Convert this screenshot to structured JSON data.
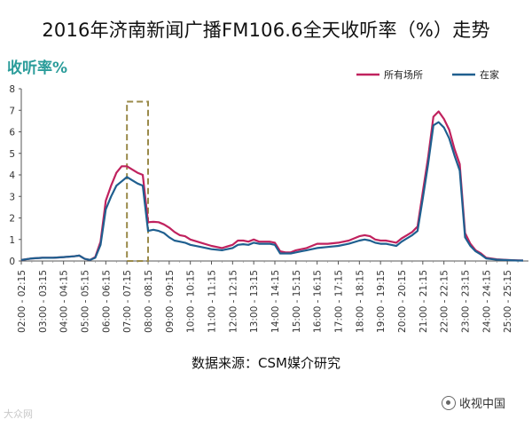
{
  "header": {
    "title": "2016年济南新闻广播FM106.6全天收听率（%）走势"
  },
  "footer": {
    "source": "数据来源：CSM媒介研究",
    "watermark_left": "大众网",
    "watermark_right": "收视中国",
    "watermark_right_icon": "speech-bubble-icon"
  },
  "colors": {
    "series_all": "#c0225e",
    "series_home": "#1f5f8f",
    "highlight_box": "#9a8a4a",
    "ylabel": "#2a9c9a"
  },
  "chart_data": {
    "type": "line",
    "title": "2016年济南新闻广播FM106.6全天收听率（%）走势",
    "xlabel": "",
    "ylabel": "收听率%",
    "ylim": [
      0,
      8
    ],
    "yticks": [
      0,
      1,
      2,
      3,
      4,
      5,
      6,
      7,
      8
    ],
    "legend_position": "top-right",
    "grid": false,
    "x_tick_labels": [
      "02:00 - 02:15",
      "03:00 - 03:15",
      "04:00 - 04:15",
      "05:00 - 05:15",
      "06:00 - 06:15",
      "07:00 - 07:15",
      "08:00 - 08:15",
      "09:00 - 09:15",
      "10:00 - 10:15",
      "11:00 - 11:15",
      "12:00 - 12:15",
      "13:00 - 13:15",
      "14:00 - 14:15",
      "15:00 - 15:15",
      "16:00 - 16:15",
      "17:00 - 17:15",
      "18:00 - 18:15",
      "19:00 - 19:15",
      "20:00 - 20:15",
      "21:00 - 21:15",
      "22:00 - 22:15",
      "23:00 - 23:15",
      "24:00 - 24:15",
      "25:00 - 25:15"
    ],
    "highlight": {
      "x_range": [
        "07:00 - 07:15",
        "08:00 - 08:15"
      ],
      "y_top": 7.4
    },
    "series": [
      {
        "name": "所有场所",
        "color": "#c0225e",
        "points": [
          [
            2.0,
            0.05
          ],
          [
            2.5,
            0.12
          ],
          [
            3.0,
            0.15
          ],
          [
            3.5,
            0.15
          ],
          [
            4.0,
            0.18
          ],
          [
            4.5,
            0.22
          ],
          [
            4.75,
            0.25
          ],
          [
            5.0,
            0.1
          ],
          [
            5.25,
            0.05
          ],
          [
            5.5,
            0.18
          ],
          [
            5.75,
            0.9
          ],
          [
            6.0,
            2.8
          ],
          [
            6.25,
            3.5
          ],
          [
            6.5,
            4.1
          ],
          [
            6.75,
            4.4
          ],
          [
            7.0,
            4.4
          ],
          [
            7.25,
            4.25
          ],
          [
            7.5,
            4.1
          ],
          [
            7.75,
            4.0
          ],
          [
            8.0,
            1.8
          ],
          [
            8.25,
            1.82
          ],
          [
            8.5,
            1.8
          ],
          [
            8.75,
            1.7
          ],
          [
            9.0,
            1.55
          ],
          [
            9.25,
            1.35
          ],
          [
            9.5,
            1.2
          ],
          [
            9.75,
            1.15
          ],
          [
            10.0,
            1.0
          ],
          [
            10.5,
            0.85
          ],
          [
            11.0,
            0.7
          ],
          [
            11.5,
            0.6
          ],
          [
            12.0,
            0.75
          ],
          [
            12.25,
            0.95
          ],
          [
            12.5,
            0.95
          ],
          [
            12.75,
            0.9
          ],
          [
            13.0,
            1.0
          ],
          [
            13.25,
            0.9
          ],
          [
            13.5,
            0.9
          ],
          [
            13.75,
            0.9
          ],
          [
            14.0,
            0.85
          ],
          [
            14.25,
            0.45
          ],
          [
            14.5,
            0.4
          ],
          [
            14.75,
            0.4
          ],
          [
            15.0,
            0.5
          ],
          [
            15.25,
            0.55
          ],
          [
            15.5,
            0.6
          ],
          [
            15.75,
            0.7
          ],
          [
            16.0,
            0.8
          ],
          [
            16.5,
            0.8
          ],
          [
            17.0,
            0.85
          ],
          [
            17.5,
            0.95
          ],
          [
            18.0,
            1.15
          ],
          [
            18.25,
            1.2
          ],
          [
            18.5,
            1.15
          ],
          [
            18.75,
            1.0
          ],
          [
            19.0,
            0.95
          ],
          [
            19.25,
            0.95
          ],
          [
            19.5,
            0.9
          ],
          [
            19.75,
            0.85
          ],
          [
            20.0,
            1.05
          ],
          [
            20.25,
            1.2
          ],
          [
            20.5,
            1.35
          ],
          [
            20.75,
            1.6
          ],
          [
            21.0,
            3.2
          ],
          [
            21.25,
            4.8
          ],
          [
            21.5,
            6.7
          ],
          [
            21.75,
            6.95
          ],
          [
            22.0,
            6.6
          ],
          [
            22.25,
            6.1
          ],
          [
            22.5,
            5.2
          ],
          [
            22.75,
            4.5
          ],
          [
            23.0,
            1.3
          ],
          [
            23.25,
            0.8
          ],
          [
            23.5,
            0.5
          ],
          [
            23.75,
            0.35
          ],
          [
            24.0,
            0.15
          ],
          [
            24.5,
            0.08
          ],
          [
            25.0,
            0.05
          ],
          [
            25.5,
            0.03
          ],
          [
            25.75,
            0.02
          ]
        ]
      },
      {
        "name": "在家",
        "color": "#1f5f8f",
        "points": [
          [
            2.0,
            0.05
          ],
          [
            2.5,
            0.12
          ],
          [
            3.0,
            0.15
          ],
          [
            3.5,
            0.15
          ],
          [
            4.0,
            0.18
          ],
          [
            4.5,
            0.22
          ],
          [
            4.75,
            0.25
          ],
          [
            5.0,
            0.1
          ],
          [
            5.25,
            0.05
          ],
          [
            5.5,
            0.15
          ],
          [
            5.75,
            0.75
          ],
          [
            6.0,
            2.4
          ],
          [
            6.25,
            3.0
          ],
          [
            6.5,
            3.5
          ],
          [
            6.75,
            3.7
          ],
          [
            7.0,
            3.9
          ],
          [
            7.25,
            3.75
          ],
          [
            7.5,
            3.6
          ],
          [
            7.75,
            3.5
          ],
          [
            8.0,
            1.4
          ],
          [
            8.25,
            1.45
          ],
          [
            8.5,
            1.4
          ],
          [
            8.75,
            1.3
          ],
          [
            9.0,
            1.1
          ],
          [
            9.25,
            0.95
          ],
          [
            9.5,
            0.9
          ],
          [
            9.75,
            0.85
          ],
          [
            10.0,
            0.75
          ],
          [
            10.5,
            0.65
          ],
          [
            11.0,
            0.55
          ],
          [
            11.5,
            0.5
          ],
          [
            12.0,
            0.6
          ],
          [
            12.25,
            0.75
          ],
          [
            12.5,
            0.78
          ],
          [
            12.75,
            0.75
          ],
          [
            13.0,
            0.85
          ],
          [
            13.25,
            0.8
          ],
          [
            13.5,
            0.8
          ],
          [
            13.75,
            0.8
          ],
          [
            14.0,
            0.75
          ],
          [
            14.25,
            0.35
          ],
          [
            14.5,
            0.35
          ],
          [
            14.75,
            0.35
          ],
          [
            15.0,
            0.4
          ],
          [
            15.25,
            0.45
          ],
          [
            15.5,
            0.5
          ],
          [
            15.75,
            0.55
          ],
          [
            16.0,
            0.6
          ],
          [
            16.5,
            0.65
          ],
          [
            17.0,
            0.7
          ],
          [
            17.5,
            0.8
          ],
          [
            18.0,
            0.95
          ],
          [
            18.25,
            1.0
          ],
          [
            18.5,
            0.95
          ],
          [
            18.75,
            0.85
          ],
          [
            19.0,
            0.8
          ],
          [
            19.25,
            0.8
          ],
          [
            19.5,
            0.75
          ],
          [
            19.75,
            0.7
          ],
          [
            20.0,
            0.9
          ],
          [
            20.25,
            1.05
          ],
          [
            20.5,
            1.2
          ],
          [
            20.75,
            1.4
          ],
          [
            21.0,
            2.9
          ],
          [
            21.25,
            4.5
          ],
          [
            21.5,
            6.3
          ],
          [
            21.75,
            6.45
          ],
          [
            22.0,
            6.2
          ],
          [
            22.25,
            5.7
          ],
          [
            22.5,
            4.9
          ],
          [
            22.75,
            4.2
          ],
          [
            23.0,
            1.1
          ],
          [
            23.25,
            0.7
          ],
          [
            23.5,
            0.45
          ],
          [
            23.75,
            0.3
          ],
          [
            24.0,
            0.12
          ],
          [
            24.5,
            0.06
          ],
          [
            25.0,
            0.04
          ],
          [
            25.5,
            0.02
          ],
          [
            25.75,
            0.02
          ]
        ]
      }
    ]
  }
}
